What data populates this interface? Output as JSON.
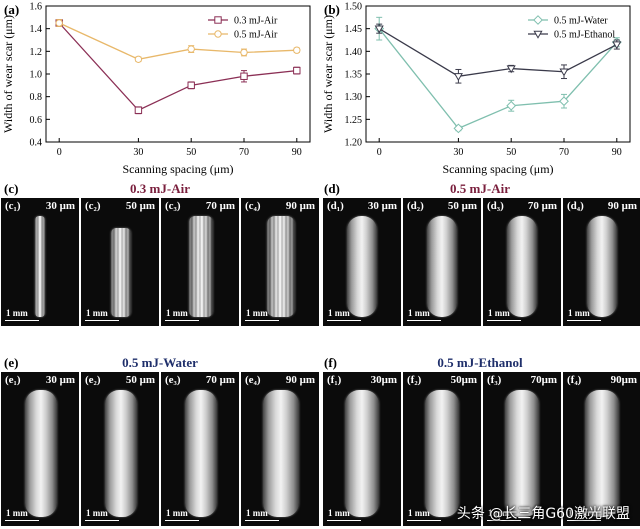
{
  "chart_data": [
    {
      "panel": "(a)",
      "type": "line",
      "xlabel": "Scanning spacing (μm)",
      "ylabel": "Width of wear scar (μm)",
      "x": [
        0,
        30,
        50,
        70,
        90
      ],
      "xlim": [
        -5,
        95
      ],
      "ylim": [
        0.4,
        1.6
      ],
      "yticks": [
        0.4,
        0.6,
        0.8,
        1.0,
        1.2,
        1.4,
        1.6
      ],
      "series": [
        {
          "name": "0.3 mJ-Air",
          "color": "#8b2f55",
          "marker": "square",
          "values": [
            1.45,
            0.68,
            0.9,
            0.98,
            1.03
          ],
          "errors": [
            0.03,
            0.03,
            0.03,
            0.05,
            0.03
          ]
        },
        {
          "name": "0.5 mJ-Air",
          "color": "#e8b86a",
          "marker": "circle",
          "values": [
            1.45,
            1.13,
            1.22,
            1.19,
            1.21
          ],
          "errors": [
            0.03,
            0.02,
            0.03,
            0.03,
            0.02
          ]
        }
      ],
      "legend": "top-right"
    },
    {
      "panel": "(b)",
      "type": "line",
      "xlabel": "Scanning spacing (μm)",
      "ylabel": "Width of wear scar (μm)",
      "x": [
        0,
        30,
        50,
        70,
        90
      ],
      "xlim": [
        -5,
        95
      ],
      "ylim": [
        1.2,
        1.5
      ],
      "yticks": [
        1.2,
        1.25,
        1.3,
        1.35,
        1.4,
        1.45,
        1.5
      ],
      "series": [
        {
          "name": "0.5 mJ-Water",
          "color": "#7fbfae",
          "marker": "diamond",
          "values": [
            1.45,
            1.23,
            1.28,
            1.29,
            1.42
          ],
          "errors": [
            0.025,
            0.005,
            0.012,
            0.015,
            0.01
          ]
        },
        {
          "name": "0.5 mJ-Ethanol",
          "color": "#3a3a4a",
          "marker": "triangle-down",
          "values": [
            1.45,
            1.345,
            1.362,
            1.355,
            1.415
          ],
          "errors": [
            0.01,
            0.015,
            0.007,
            0.015,
            0.01
          ]
        }
      ],
      "legend": "top-right"
    }
  ],
  "micrographs": {
    "scale_label": "1 mm",
    "groups": [
      {
        "panel": "(c)",
        "title": "0.3 mJ-Air",
        "title_color": "#7a1f3d",
        "items": [
          {
            "sub": "(c₁)",
            "spacing": "30 μm"
          },
          {
            "sub": "(c₂)",
            "spacing": "50 μm"
          },
          {
            "sub": "(c₃)",
            "spacing": "70 μm"
          },
          {
            "sub": "(c₄)",
            "spacing": "90 μm"
          }
        ]
      },
      {
        "panel": "(d)",
        "title": "0.5 mJ-Air",
        "title_color": "#7a1f3d",
        "items": [
          {
            "sub": "(d₁)",
            "spacing": "30 μm"
          },
          {
            "sub": "(d₂)",
            "spacing": "50 μm"
          },
          {
            "sub": "(d₃)",
            "spacing": "70 μm"
          },
          {
            "sub": "(d₄)",
            "spacing": "90 μm"
          }
        ]
      },
      {
        "panel": "(e)",
        "title": "0.5 mJ-Water",
        "title_color": "#1f2f6b",
        "items": [
          {
            "sub": "(e₁)",
            "spacing": "30 μm"
          },
          {
            "sub": "(e₂)",
            "spacing": "50 μm"
          },
          {
            "sub": "(e₃)",
            "spacing": "70 μm"
          },
          {
            "sub": "(e₄)",
            "spacing": "90 μm"
          }
        ]
      },
      {
        "panel": "(f)",
        "title": "0.5 mJ-Ethanol",
        "title_color": "#1f2f6b",
        "items": [
          {
            "sub": "(f₁)",
            "spacing": "30μm"
          },
          {
            "sub": "(f₂)",
            "spacing": "50μm"
          },
          {
            "sub": "(f₃)",
            "spacing": "70μm"
          },
          {
            "sub": "(f₄)",
            "spacing": "90μm"
          }
        ]
      }
    ]
  },
  "watermark": "头条 @长三角G60激光联盟"
}
